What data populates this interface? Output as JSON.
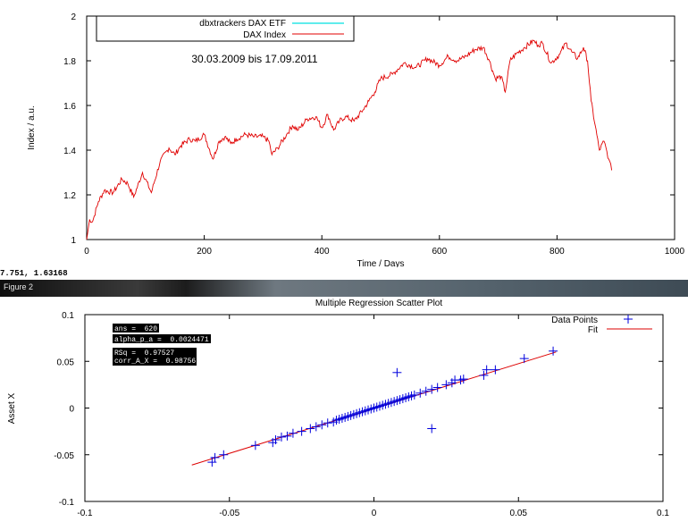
{
  "top_chart": {
    "chart_data": {
      "type": "line",
      "xlabel": "Time / Days",
      "ylabel": "Index / a.u.",
      "xlim": [
        0,
        1000
      ],
      "ylim": [
        1,
        2
      ],
      "x_ticks": [
        "0",
        "200",
        "400",
        "600",
        "800",
        "1000"
      ],
      "y_ticks": [
        "1",
        "1.2",
        "1.4",
        "1.6",
        "1.8",
        "2"
      ],
      "annotation": "30.03.2009 bis 17.09.2011",
      "legend": {
        "placement": "top-left"
      },
      "grid": false,
      "series": [
        {
          "name": "dbxtrackers DAX ETF",
          "color": "#00e0e0",
          "values": []
        },
        {
          "name": "DAX Index",
          "color": "#e00000",
          "x": [
            0,
            5,
            10,
            20,
            30,
            45,
            60,
            70,
            80,
            95,
            110,
            125,
            140,
            150,
            160,
            175,
            185,
            200,
            215,
            225,
            235,
            245,
            255,
            270,
            285,
            300,
            310,
            315,
            325,
            340,
            350,
            360,
            375,
            390,
            400,
            410,
            420,
            430,
            440,
            455,
            470,
            480,
            490,
            500,
            520,
            540,
            560,
            580,
            600,
            615,
            630,
            645,
            660,
            675,
            685,
            695,
            705,
            712,
            720,
            730,
            745,
            760,
            768,
            775,
            790,
            805,
            815,
            825,
            835,
            845,
            852,
            858,
            865,
            872,
            880,
            888,
            893
          ],
          "y": [
            1.0,
            1.09,
            1.08,
            1.17,
            1.22,
            1.21,
            1.27,
            1.25,
            1.19,
            1.3,
            1.21,
            1.35,
            1.41,
            1.38,
            1.42,
            1.45,
            1.44,
            1.47,
            1.36,
            1.44,
            1.46,
            1.43,
            1.45,
            1.47,
            1.46,
            1.46,
            1.44,
            1.38,
            1.41,
            1.47,
            1.51,
            1.49,
            1.54,
            1.55,
            1.5,
            1.56,
            1.49,
            1.53,
            1.55,
            1.53,
            1.58,
            1.62,
            1.66,
            1.72,
            1.74,
            1.79,
            1.77,
            1.81,
            1.78,
            1.82,
            1.8,
            1.82,
            1.85,
            1.86,
            1.8,
            1.72,
            1.73,
            1.66,
            1.8,
            1.83,
            1.86,
            1.89,
            1.87,
            1.88,
            1.79,
            1.83,
            1.88,
            1.84,
            1.81,
            1.86,
            1.8,
            1.62,
            1.51,
            1.4,
            1.44,
            1.36,
            1.31
          ]
        }
      ]
    }
  },
  "status": {
    "coords": "7.751,  1.63168"
  },
  "window": {
    "title": "Figure 2"
  },
  "bottom_chart": {
    "chart_data": {
      "type": "scatter",
      "title": "Multiple Regression Scatter Plot",
      "ylabel": "Asset X",
      "xlim": [
        -0.1,
        0.1
      ],
      "ylim": [
        -0.1,
        0.1
      ],
      "x_ticks": [
        "-0.1",
        "-0.05",
        "0",
        "0.05",
        "0.1"
      ],
      "y_ticks": [
        "-0.1",
        "-0.05",
        "0",
        "0.05",
        "0.1"
      ],
      "legend": {
        "placement": "top-right"
      },
      "grid": false,
      "stats": [
        "ans =  620",
        "alpha_p_a =  0.0024471",
        "RSq =  0.97527",
        "corr_A_X =  0.98756"
      ],
      "series": [
        {
          "name": "Data Points",
          "color": "#0000dd",
          "marker": "+",
          "x": [
            -0.056,
            -0.055,
            -0.052,
            -0.041,
            -0.035,
            -0.034,
            -0.032,
            -0.03,
            -0.028,
            -0.025,
            -0.022,
            -0.02,
            -0.018,
            -0.016,
            -0.014,
            -0.013,
            -0.012,
            -0.011,
            -0.01,
            -0.009,
            -0.008,
            -0.007,
            -0.006,
            -0.005,
            -0.004,
            -0.003,
            -0.002,
            -0.001,
            0.0,
            0.001,
            0.002,
            0.003,
            0.004,
            0.005,
            0.006,
            0.007,
            0.008,
            0.009,
            0.01,
            0.011,
            0.012,
            0.013,
            0.014,
            0.016,
            0.018,
            0.02,
            0.022,
            0.025,
            0.027,
            0.028,
            0.03,
            0.031,
            0.038,
            0.039,
            0.042,
            0.052,
            0.062,
            0.008,
            0.02
          ],
          "y": [
            -0.058,
            -0.053,
            -0.05,
            -0.04,
            -0.037,
            -0.034,
            -0.031,
            -0.03,
            -0.027,
            -0.025,
            -0.022,
            -0.02,
            -0.018,
            -0.016,
            -0.015,
            -0.013,
            -0.012,
            -0.011,
            -0.01,
            -0.009,
            -0.008,
            -0.007,
            -0.006,
            -0.005,
            -0.004,
            -0.003,
            -0.002,
            -0.001,
            0.0,
            0.001,
            0.002,
            0.003,
            0.004,
            0.005,
            0.006,
            0.007,
            0.008,
            0.009,
            0.01,
            0.011,
            0.012,
            0.013,
            0.014,
            0.016,
            0.018,
            0.02,
            0.022,
            0.025,
            0.027,
            0.03,
            0.03,
            0.031,
            0.035,
            0.041,
            0.041,
            0.053,
            0.061,
            0.038,
            -0.022
          ]
        },
        {
          "name": "Fit",
          "color": "#dd0000",
          "x": [
            -0.063,
            0.063
          ],
          "y": [
            -0.061,
            0.06
          ]
        }
      ]
    }
  }
}
